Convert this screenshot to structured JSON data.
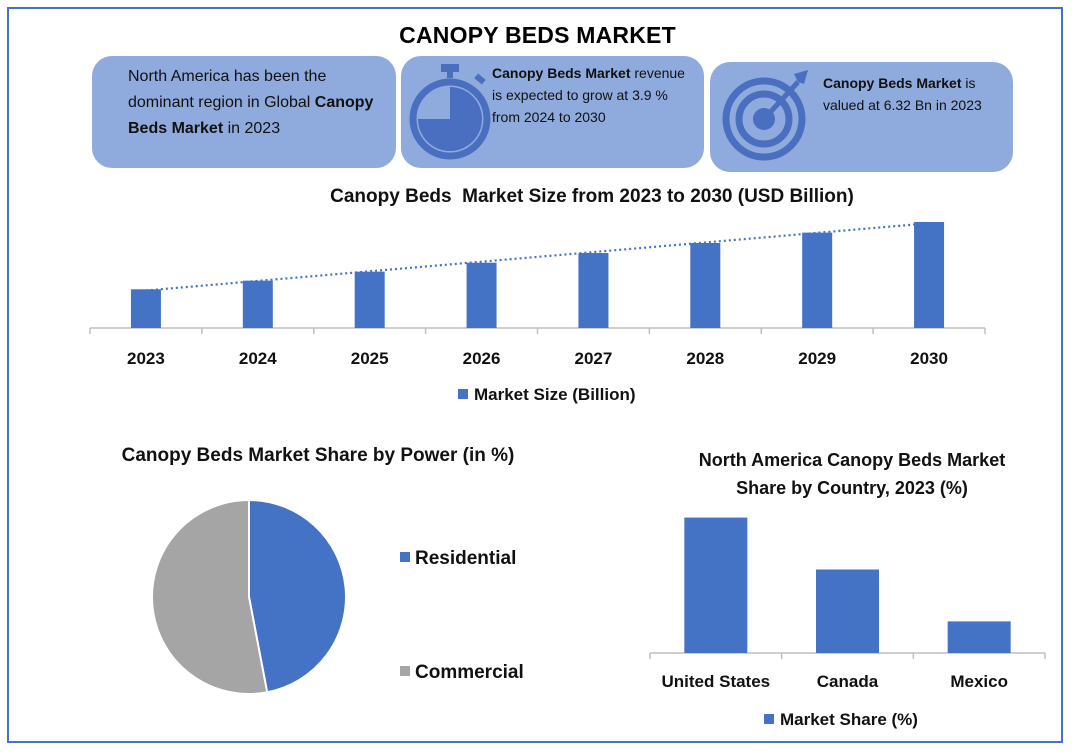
{
  "page_title": "CANOPY BEDS MARKET",
  "cards": [
    {
      "pre": "North America has been the dominant region in Global ",
      "bold": "Canopy Beds Market",
      "post": " in 2023"
    },
    {
      "bold": "Canopy Beds Market",
      "post": " revenue is expected to grow at 3.9 % from 2024 to 2030",
      "icon": "stopwatch-icon"
    },
    {
      "bold": "Canopy Beds Market",
      "post": " is valued at 6.32 Bn in 2023",
      "icon": "target-icon"
    }
  ],
  "colors": {
    "accent": "#4472c4",
    "card": "#8faadc",
    "icon": "#4a6fc0",
    "gray": "#a5a5a5"
  },
  "chart_data": [
    {
      "type": "bar",
      "title": "Canopy Beds  Market Size from 2023 to 2030 (USD Billion)",
      "categories": [
        "2023",
        "2024",
        "2025",
        "2026",
        "2027",
        "2028",
        "2029",
        "2030"
      ],
      "series": [
        {
          "name": "Market Size (Billion)",
          "values": [
            6.32,
            6.57,
            6.83,
            7.09,
            7.37,
            7.66,
            7.96,
            8.27
          ]
        }
      ],
      "ylim": [
        5.2,
        8.5
      ],
      "trendline": "linear, dotted",
      "legend": "bottom"
    },
    {
      "type": "pie",
      "title": "Canopy Beds  Market Share by Power (in %)",
      "slices": [
        {
          "label": "Residential",
          "value": 47,
          "color": "#4472c4"
        },
        {
          "label": "Commercial",
          "value": 53,
          "color": "#a5a5a5"
        }
      ],
      "legend": "right"
    },
    {
      "type": "bar",
      "title": "North America Canopy Beds  Market Share by Country, 2023 (%)",
      "categories": [
        "United States",
        "Canada",
        "Mexico"
      ],
      "series": [
        {
          "name": "Market Share (%)",
          "values": [
            60,
            37,
            14
          ]
        }
      ],
      "ylim": [
        0,
        70
      ],
      "legend": "bottom"
    }
  ]
}
